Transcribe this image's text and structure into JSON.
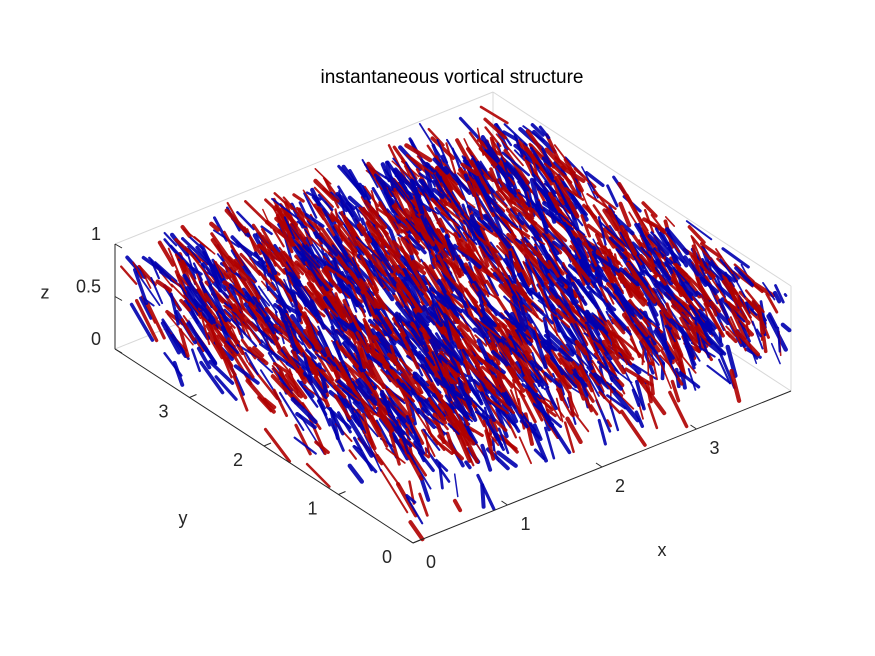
{
  "chart_data": {
    "type": "isosurface",
    "title": "instantaneous vortical structure",
    "xlabel": "x",
    "ylabel": "y",
    "zlabel": "z",
    "xlim": [
      0,
      4
    ],
    "ylim": [
      0,
      4
    ],
    "zlim": [
      0,
      1
    ],
    "xticks": [
      0,
      1,
      2,
      3
    ],
    "yticks": [
      0,
      1,
      2,
      3
    ],
    "zticks": [
      0,
      0.5,
      1
    ],
    "surface_colors": [
      "#b00000",
      "#0000b0"
    ],
    "grid": false,
    "box": true
  }
}
